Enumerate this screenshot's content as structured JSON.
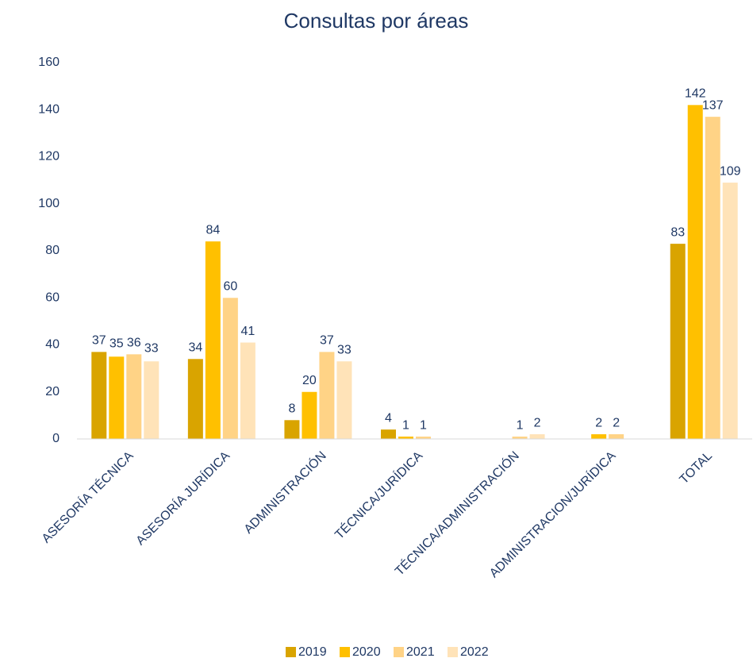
{
  "chart_data": {
    "type": "bar",
    "title": "Consultas por áreas",
    "categories": [
      "ASESORÍA TÉCNICA",
      "ASESORÍA JURÍDICA",
      "ADMINISTRACIÓN",
      "TÉCNICA/JURÍDICA",
      "TÉCNICA/ADMINISTRACIÓN",
      "ADMINISTRACION/JURÍDICA",
      "TOTAL"
    ],
    "series": [
      {
        "name": "2019",
        "color": "#D9A400",
        "values": [
          37,
          34,
          8,
          4,
          null,
          null,
          83
        ]
      },
      {
        "name": "2020",
        "color": "#FFC000",
        "values": [
          35,
          84,
          20,
          1,
          null,
          2,
          142
        ]
      },
      {
        "name": "2021",
        "color": "#FFD386",
        "values": [
          36,
          60,
          37,
          1,
          1,
          2,
          137
        ]
      },
      {
        "name": "2022",
        "color": "#FFE3B8",
        "values": [
          33,
          41,
          33,
          null,
          2,
          null,
          109
        ]
      }
    ],
    "ylim": [
      0,
      160
    ],
    "yticks": [
      0,
      20,
      40,
      60,
      80,
      100,
      120,
      140,
      160
    ],
    "grid": false,
    "legend": "bottom"
  }
}
